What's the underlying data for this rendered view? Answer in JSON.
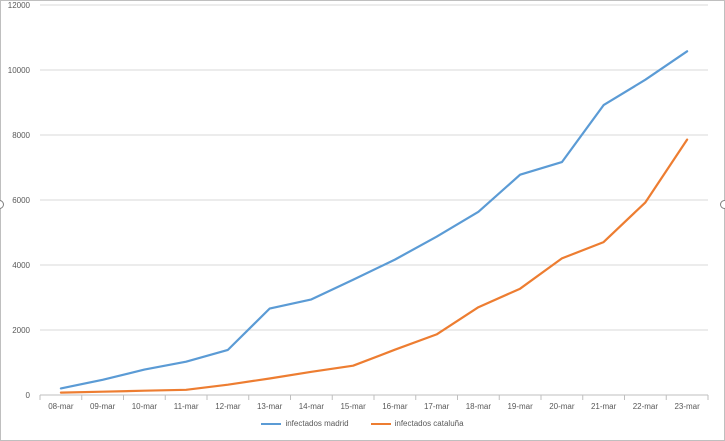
{
  "colors": {
    "madrid": "#5b9bd5",
    "cataluna": "#ed7d31",
    "grid": "#d9d9d9",
    "axis_text": "#595959"
  },
  "chart_data": {
    "type": "line",
    "title": "",
    "xlabel": "",
    "ylabel": "",
    "grid": true,
    "legend_position": "bottom",
    "categories": [
      "08-mar",
      "09-mar",
      "10-mar",
      "11-mar",
      "12-mar",
      "13-mar",
      "14-mar",
      "15-mar",
      "16-mar",
      "17-mar",
      "18-mar",
      "19-mar",
      "20-mar",
      "21-mar",
      "22-mar",
      "23-mar"
    ],
    "ylim": [
      0,
      12000
    ],
    "yticks": [
      "0",
      "2000",
      "4000",
      "6000",
      "8000",
      "10000",
      "12000"
    ],
    "series": [
      {
        "name": "infectados madrid",
        "color_key": "madrid",
        "values": [
          202,
          469,
          782,
          1024,
          1388,
          2659,
          2940,
          3544,
          4165,
          4871,
          5637,
          6777,
          7165,
          8921,
          9702,
          10575
        ]
      },
      {
        "name": "infectados cataluña",
        "color_key": "cataluna",
        "values": [
          75,
          101,
          133,
          159,
          316,
          509,
          715,
          903,
          1394,
          1866,
          2702,
          3270,
          4203,
          4704,
          5925,
          7858
        ]
      }
    ]
  }
}
